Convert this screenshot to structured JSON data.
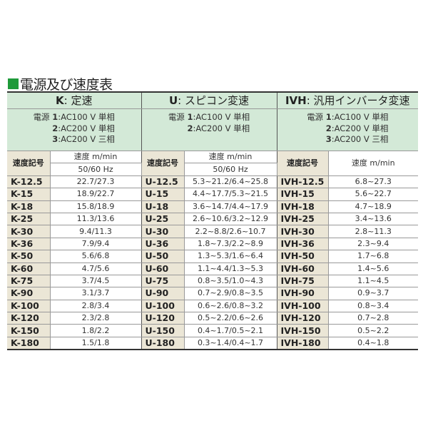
{
  "title": "電源及び速度表",
  "accent": "#1f9a3a",
  "columns": [
    {
      "key": "K",
      "label": "定速",
      "power": [
        {
          "n": "1",
          "t": "AC100 V 単相"
        },
        {
          "n": "2",
          "t": "AC200 V 単相"
        },
        {
          "n": "3",
          "t": "AC200 V 三相"
        }
      ]
    },
    {
      "key": "U",
      "label": "スピコン変速",
      "power": [
        {
          "n": "1",
          "t": "AC100 V 単相"
        },
        {
          "n": "2",
          "t": "AC200 V 単相"
        }
      ]
    },
    {
      "key": "IVH",
      "label": "汎用インバータ変速",
      "power": [
        {
          "n": "1",
          "t": "AC100 V 単相"
        },
        {
          "n": "2",
          "t": "AC200 V 単相"
        },
        {
          "n": "3",
          "t": "AC200 V 三相"
        }
      ]
    }
  ],
  "power_label": "電源",
  "code_header": "速度記号",
  "speed_header": "速度 m/min",
  "freq_header": "50/60 Hz",
  "rows": [
    [
      "K-12.5",
      "22.7/27.3",
      "U-12.5",
      "5.3~21.2/6.4~25.8",
      "IVH-12.5",
      "6.8~27.3"
    ],
    [
      "K-15",
      "18.9/22.7",
      "U-15",
      "4.4~17.7/5.3~21.5",
      "IVH-15",
      "5.6~22.7"
    ],
    [
      "K-18",
      "15.8/18.9",
      "U-18",
      "3.6~14.7/4.4~17.9",
      "IVH-18",
      "4.7~18.9"
    ],
    [
      "K-25",
      "11.3/13.6",
      "U-25",
      "2.6~10.6/3.2~12.9",
      "IVH-25",
      "3.4~13.6"
    ],
    [
      "K-30",
      "9.4/11.3",
      "U-30",
      "2.2~8.8/2.6~10.7",
      "IVH-30",
      "2.8~11.3"
    ],
    [
      "K-36",
      "7.9/9.4",
      "U-36",
      "1.8~7.3/2.2~8.9",
      "IVH-36",
      "2.3~9.4"
    ],
    [
      "K-50",
      "5.6/6.8",
      "U-50",
      "1.3~5.3/1.6~6.4",
      "IVH-50",
      "1.7~6.8"
    ],
    [
      "K-60",
      "4.7/5.6",
      "U-60",
      "1.1~4.4/1.3~5.3",
      "IVH-60",
      "1.4~5.6"
    ],
    [
      "K-75",
      "3.7/4.5",
      "U-75",
      "0.8~3.5/1.0~4.3",
      "IVH-75",
      "1.1~4.5"
    ],
    [
      "K-90",
      "3.1/3.7",
      "U-90",
      "0.7~2.9/0.8~3.5",
      "IVH-90",
      "0.9~3.7"
    ],
    [
      "K-100",
      "2.8/3.4",
      "U-100",
      "0.6~2.6/0.8~3.2",
      "IVH-100",
      "0.8~3.4"
    ],
    [
      "K-120",
      "2.3/2.8",
      "U-120",
      "0.5~2.2/0.6~2.6",
      "IVH-120",
      "0.7~2.8"
    ],
    [
      "K-150",
      "1.8/2.2",
      "U-150",
      "0.4~1.7/0.5~2.1",
      "IVH-150",
      "0.5~2.2"
    ],
    [
      "K-180",
      "1.5/1.8",
      "U-180",
      "0.3~1.4/0.4~1.7",
      "IVH-180",
      "0.4~1.8"
    ]
  ]
}
